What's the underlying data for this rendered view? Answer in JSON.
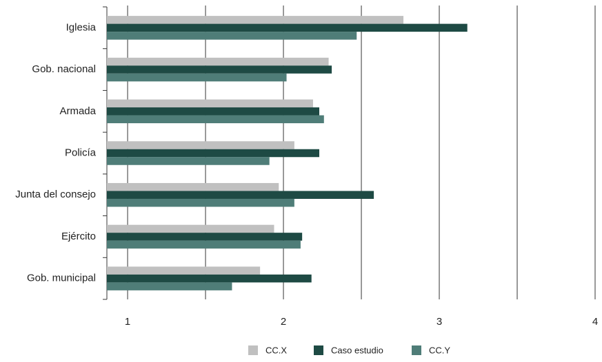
{
  "chart_data": {
    "type": "hbar",
    "categories": [
      "Iglesia",
      "Gob. nacional",
      "Armada",
      "Policía",
      "Junta del consejo",
      "Ejército",
      "Gob. municipal"
    ],
    "series": [
      {
        "name": "CC.X",
        "color": "#c0c0c0",
        "values": [
          2.77,
          2.29,
          2.19,
          2.07,
          1.97,
          1.94,
          1.85
        ]
      },
      {
        "name": "Caso estudio",
        "color": "#1e4a44",
        "values": [
          3.18,
          2.31,
          2.23,
          2.23,
          2.58,
          2.12,
          2.18
        ]
      },
      {
        "name": "CC.Y",
        "color": "#4f7d78",
        "values": [
          2.47,
          2.02,
          2.26,
          1.91,
          2.07,
          2.11,
          1.67
        ]
      }
    ],
    "xlim": [
      0.867,
      4
    ],
    "xticks": [
      1,
      2,
      3,
      4
    ],
    "xgrid": [
      1,
      1.5,
      2,
      2.5,
      3,
      3.5,
      4
    ],
    "grid": true,
    "legend": "bottom"
  }
}
